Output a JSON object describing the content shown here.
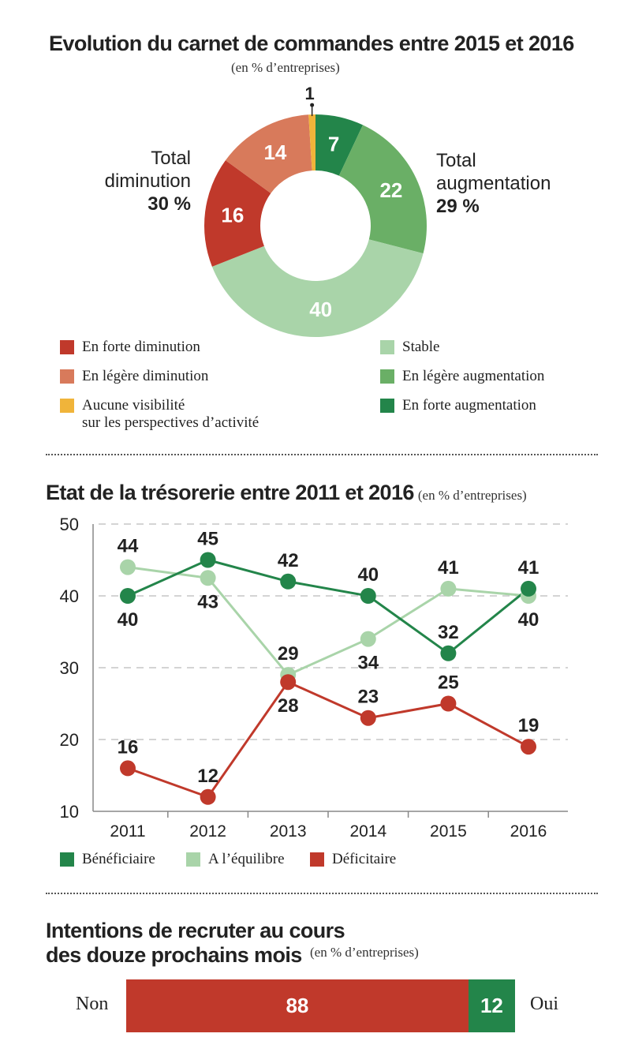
{
  "colors": {
    "strong_decrease": "#c0392b",
    "slight_decrease": "#d87a5b",
    "no_visibility": "#f0b43a",
    "stable": "#a9d4a9",
    "slight_increase": "#6aaf66",
    "strong_increase": "#23854a",
    "beneficiaire": "#23854a",
    "equilibre": "#a9d4a9",
    "deficitaire": "#c0392b"
  },
  "chart_data": [
    {
      "type": "pie",
      "title": "Evolution du carnet de commandes entre 2015 et 2016",
      "subtitle": "(en % d’entreprises)",
      "slices": [
        {
          "key": "strong_increase",
          "label": "En forte augmentation",
          "value": 7,
          "value_label": "7"
        },
        {
          "key": "slight_increase",
          "label": "En légère augmentation",
          "value": 22,
          "value_label": "22"
        },
        {
          "key": "stable",
          "label": "Stable",
          "value": 40,
          "value_label": "40"
        },
        {
          "key": "strong_decrease",
          "label": "En forte diminution",
          "value": 16,
          "value_label": "16"
        },
        {
          "key": "slight_decrease",
          "label": "En légère diminution",
          "value": 14,
          "value_label": "14"
        },
        {
          "key": "no_visibility",
          "label": "Aucune visibilité sur les perspectives d’activité",
          "value": 1,
          "value_label": "1"
        }
      ],
      "totals": {
        "decrease_label_1": "Total",
        "decrease_label_2": "diminution",
        "decrease_value": "30 %",
        "increase_label_1": "Total",
        "increase_label_2": "augmentation",
        "increase_value": "29 %"
      },
      "legend": {
        "strong_decrease": "En forte diminution",
        "slight_decrease": "En légère diminution",
        "no_visibility_1": "Aucune visibilité",
        "no_visibility_2": "sur les perspectives d’activité",
        "stable": "Stable",
        "slight_increase": "En légère augmentation",
        "strong_increase": "En forte augmentation"
      }
    },
    {
      "type": "line",
      "title": "Etat de la trésorerie entre 2011 et 2016",
      "subtitle": "(en % d’entreprises)",
      "x": [
        "2011",
        "2012",
        "2013",
        "2014",
        "2015",
        "2016"
      ],
      "ylim": [
        10,
        50
      ],
      "yticks": [
        10,
        20,
        30,
        40,
        50
      ],
      "series": [
        {
          "key": "beneficiaire",
          "name": "Bénéficiaire",
          "values": [
            40,
            45,
            42,
            40,
            32,
            41
          ],
          "label_pos": [
            "below",
            "above",
            "above",
            "above",
            "above",
            "above"
          ]
        },
        {
          "key": "equilibre",
          "name": "A l’équilibre",
          "values": [
            44,
            42.5,
            29,
            34,
            41,
            40
          ],
          "labels": [
            "44",
            "43",
            "29",
            "34",
            "41",
            "40"
          ],
          "label_pos": [
            "above",
            "below",
            "above",
            "below",
            "above",
            "below"
          ]
        },
        {
          "key": "deficitaire",
          "name": "Déficitaire",
          "values": [
            16,
            12,
            28,
            23,
            25,
            19
          ],
          "label_pos": [
            "above",
            "above",
            "below",
            "above",
            "above",
            "above"
          ]
        }
      ]
    },
    {
      "type": "bar",
      "title_1": "Intentions de recruter au cours",
      "title_2": "des douze prochains mois",
      "subtitle": "(en % d’entreprises)",
      "categories": [
        "Non",
        "Oui"
      ],
      "values": [
        88,
        12
      ]
    }
  ]
}
